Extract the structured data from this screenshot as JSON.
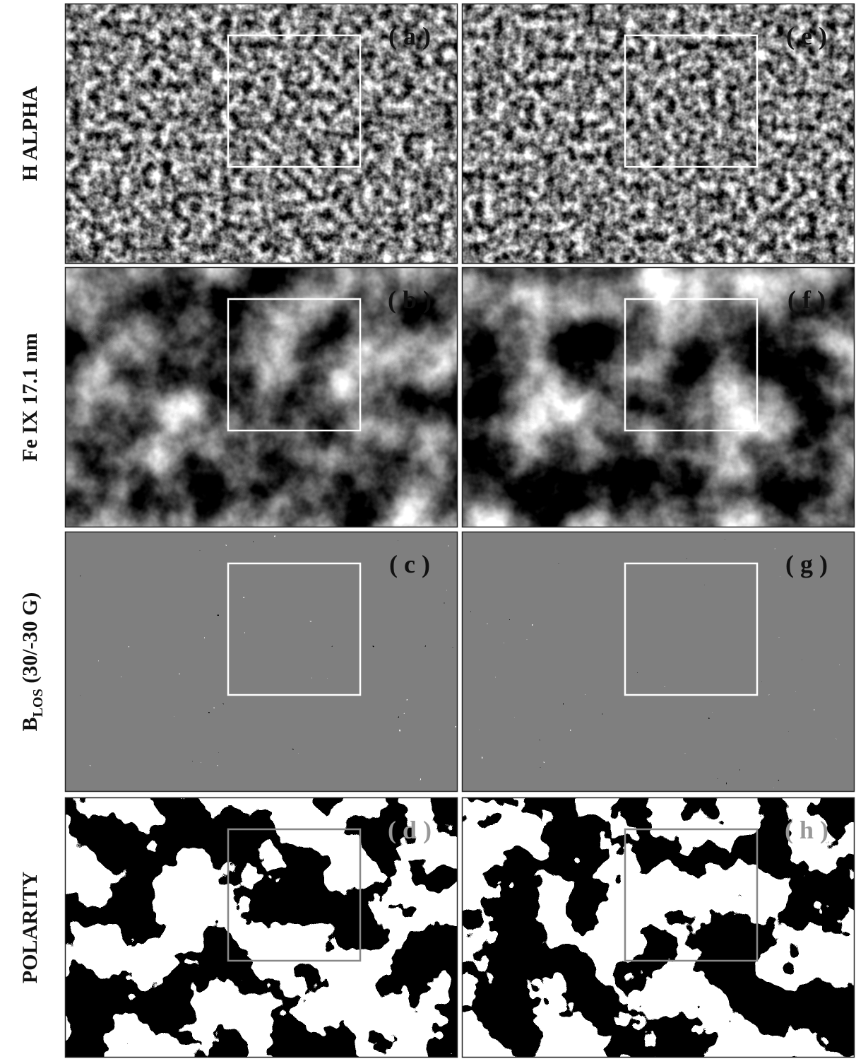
{
  "rows": [
    {
      "label": "H  ALPHA",
      "panels": [
        {
          "label": "( a )"
        },
        {
          "label": "( e )"
        }
      ]
    },
    {
      "label": "Fe  IX  17.1 nm",
      "panels": [
        {
          "label": "( b )"
        },
        {
          "label": "( f )"
        }
      ]
    },
    {
      "label": "B",
      "label_subscript": "LOS",
      "label_suffix": " (30/-30 G)",
      "panels": [
        {
          "label": "( c )"
        },
        {
          "label": "( g )"
        }
      ]
    },
    {
      "label": "POLARITY",
      "panels": [
        {
          "label": "( d )"
        },
        {
          "label": "( h )"
        }
      ]
    }
  ]
}
